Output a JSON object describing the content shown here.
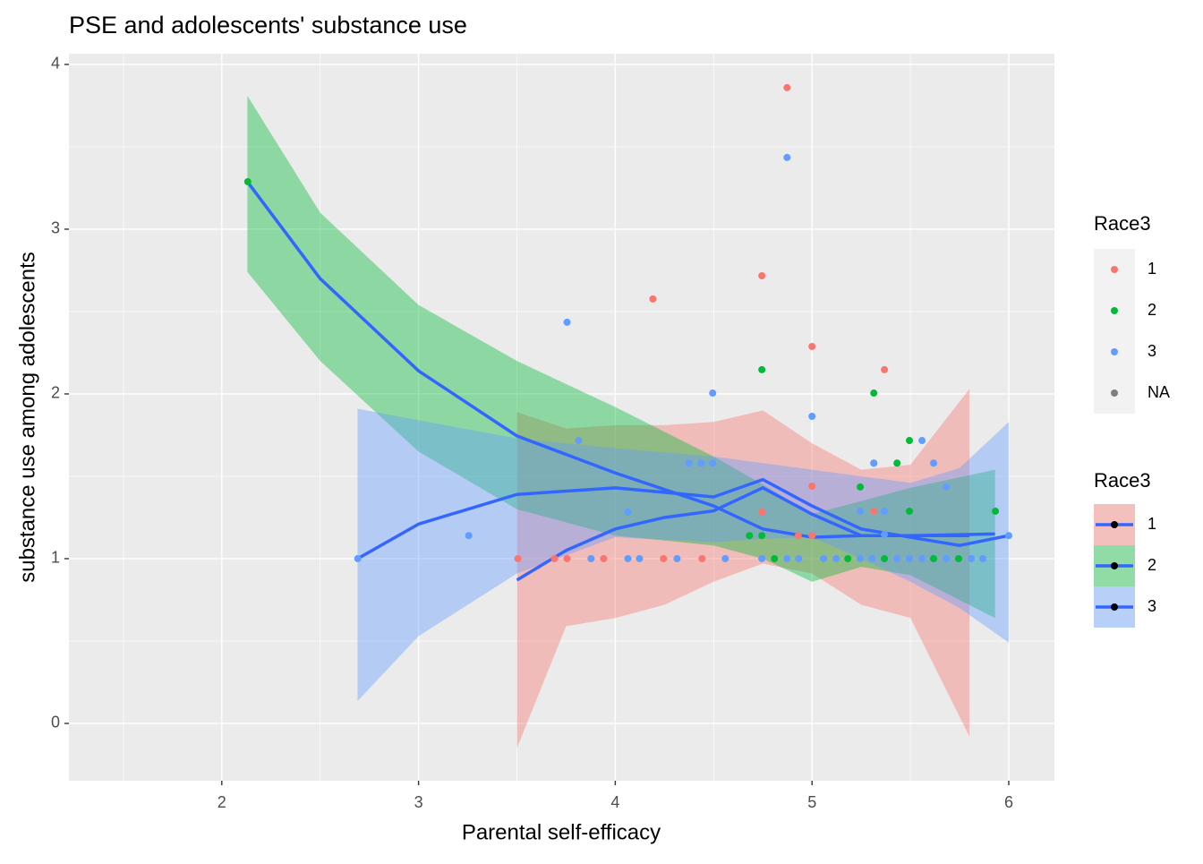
{
  "chart_data": {
    "type": "scatter",
    "title": "PSE and adolescents' substance use",
    "x_label": "Parental self-efficacy",
    "y_label": "substance use among adolescents",
    "xlim": [
      1.223,
      6.232
    ],
    "ylim": [
      -0.348,
      4.065
    ],
    "xticks": [
      2,
      3,
      4,
      5,
      6
    ],
    "yticks": [
      0,
      1,
      2,
      3,
      4
    ],
    "grid": true,
    "legend_position": "right",
    "legends": [
      {
        "title": "Race3"
      },
      {
        "title": "Race3"
      }
    ],
    "na_entry": {
      "name": "NA",
      "color": "#7F7F7F"
    },
    "smooth_color": "#3366FF",
    "series": [
      {
        "name": "1",
        "color": "#F8766D",
        "x": [
          4.873,
          4.745,
          4.191,
          5.0,
          5.368,
          5.0,
          4.745,
          4.93,
          5.0,
          5.314,
          5.314,
          3.505,
          3.691,
          3.755,
          3.877,
          3.941,
          4.245,
          4.441
        ],
        "values": [
          3.859,
          2.717,
          2.576,
          2.288,
          2.147,
          1.44,
          1.283,
          1.14,
          1.14,
          1.58,
          1.288,
          1.0,
          1.0,
          1.0,
          1.0,
          1.0,
          1.0,
          1.0
        ],
        "smooth": {
          "x": [
            3.5,
            3.75,
            4,
            4.25,
            4.5,
            4.75,
            5,
            5.25,
            5.5,
            5.8
          ],
          "fit": [
            0.87,
            1.05,
            1.18,
            1.25,
            1.29,
            1.43,
            1.27,
            1.14,
            1.14,
            1.14
          ],
          "upper": [
            1.89,
            1.79,
            1.81,
            1.81,
            1.83,
            1.9,
            1.7,
            1.54,
            1.57,
            2.03
          ],
          "lower": [
            -0.15,
            0.59,
            0.64,
            0.72,
            0.86,
            0.97,
            0.91,
            0.72,
            0.64,
            -0.08
          ]
        }
      },
      {
        "name": "2",
        "color": "#00BA38",
        "x": [
          2.132,
          4.745,
          5.314,
          5.495,
          5.432,
          5.245,
          5.495,
          4.682,
          4.745,
          5.932,
          4.809,
          5.182,
          5.368,
          5.618,
          5.745
        ],
        "values": [
          3.288,
          2.147,
          2.005,
          1.717,
          1.58,
          1.435,
          1.288,
          1.14,
          1.14,
          1.288,
          1.0,
          1.0,
          1.0,
          1.0,
          1.0
        ],
        "smooth": {
          "x": [
            2.13,
            2.5,
            3,
            3.5,
            4,
            4.5,
            4.75,
            5,
            5.25,
            5.5,
            5.93
          ],
          "fit": [
            3.288,
            2.7,
            2.14,
            1.745,
            1.52,
            1.32,
            1.18,
            1.13,
            1.14,
            1.14,
            1.15
          ],
          "upper": [
            3.81,
            3.1,
            2.54,
            2.2,
            1.92,
            1.62,
            1.45,
            1.27,
            1.35,
            1.43,
            1.54
          ],
          "lower": [
            2.74,
            2.2,
            1.65,
            1.3,
            1.14,
            1.08,
            1.0,
            0.86,
            0.95,
            0.9,
            0.64
          ]
        }
      },
      {
        "name": "3",
        "color": "#619CFF",
        "x": [
          4.873,
          3.755,
          4.495,
          5.0,
          3.814,
          5.559,
          4.373,
          4.436,
          4.495,
          5.314,
          5.618,
          5.682,
          4.064,
          5.245,
          5.368,
          3.255,
          5.368,
          6.0,
          2.691,
          3.877,
          4.064,
          4.123,
          4.314,
          4.559,
          4.745,
          4.873,
          4.932,
          5.059,
          5.123,
          5.245,
          5.305,
          5.432,
          5.495,
          5.559,
          5.682,
          5.809,
          5.868
        ],
        "values": [
          3.435,
          2.435,
          2.005,
          1.864,
          1.717,
          1.717,
          1.58,
          1.58,
          1.58,
          1.58,
          1.58,
          1.435,
          1.283,
          1.288,
          1.288,
          1.14,
          1.147,
          1.14,
          1.0,
          1.0,
          1.0,
          1.0,
          1.0,
          1.0,
          1.0,
          1.0,
          1.0,
          1.0,
          1.0,
          1.0,
          1.0,
          1.0,
          1.0,
          1.0,
          1.0,
          1.0,
          1.0
        ],
        "smooth": {
          "x": [
            2.69,
            3,
            3.5,
            4,
            4.5,
            4.75,
            5,
            5.25,
            5.5,
            5.75,
            6
          ],
          "fit": [
            1.0,
            1.21,
            1.39,
            1.43,
            1.375,
            1.48,
            1.32,
            1.18,
            1.13,
            1.08,
            1.14
          ],
          "upper": [
            1.91,
            1.84,
            1.73,
            1.67,
            1.62,
            1.58,
            1.54,
            1.5,
            1.46,
            1.55,
            1.83
          ],
          "lower": [
            0.136,
            0.53,
            0.91,
            1.13,
            1.1,
            1.12,
            1.13,
            1.0,
            0.86,
            0.7,
            0.49
          ]
        }
      }
    ]
  }
}
